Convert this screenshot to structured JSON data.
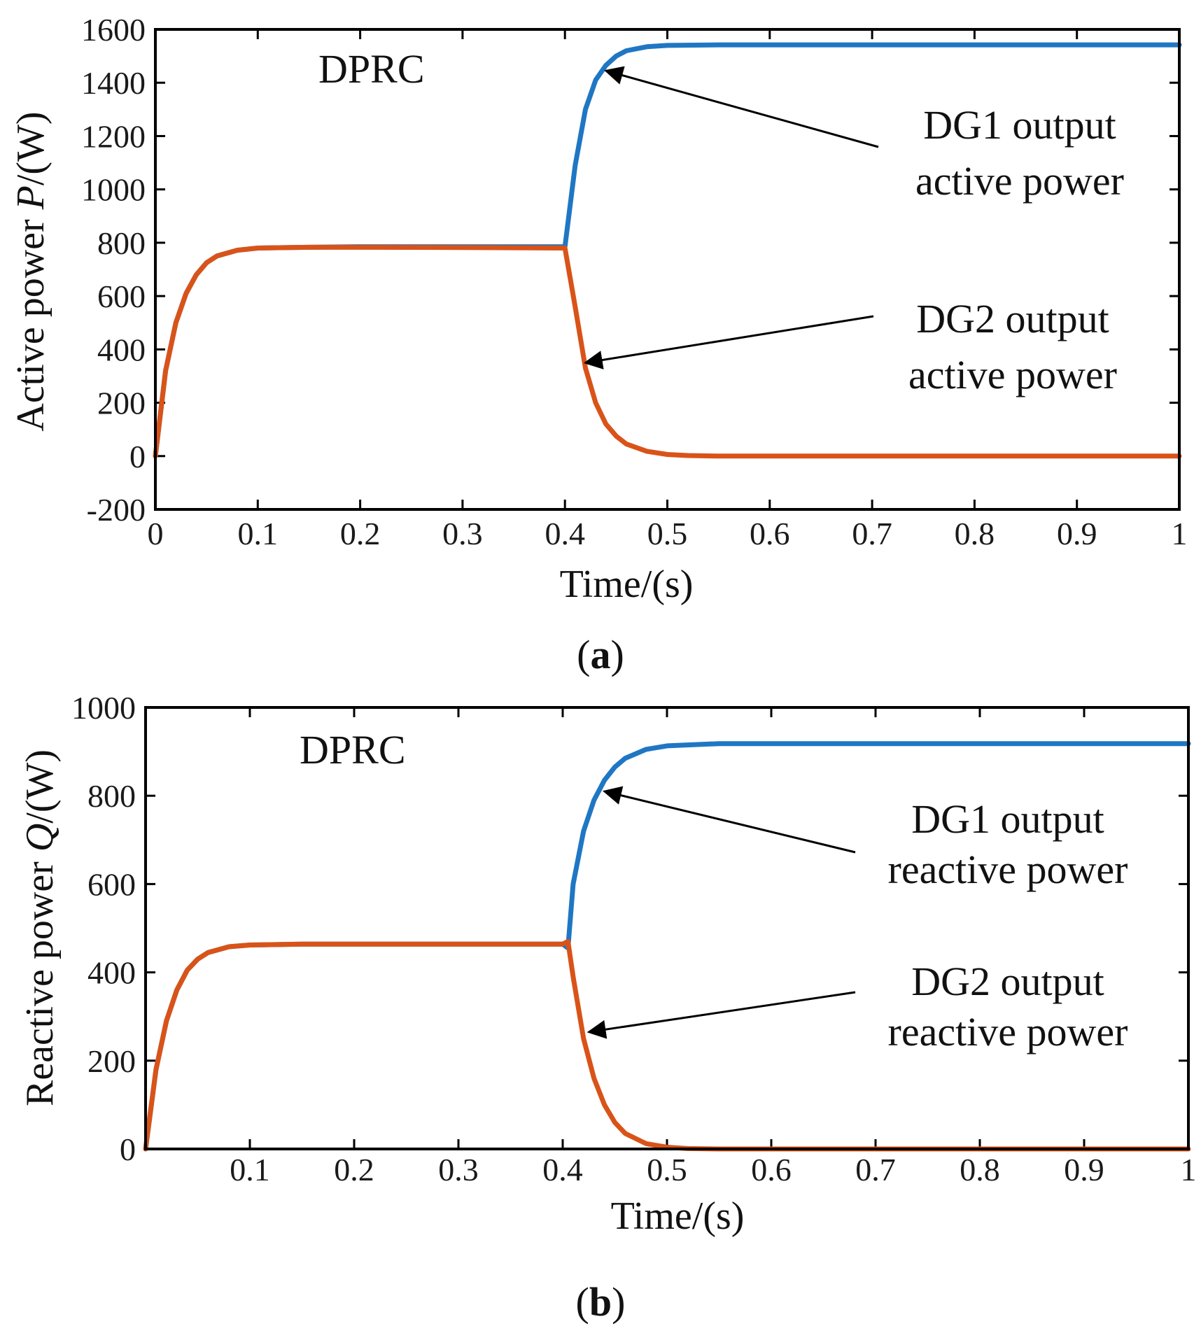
{
  "chart_data": [
    {
      "type": "line",
      "panel_label": "(a)",
      "panel_letter": "a",
      "annotation": "DPRC",
      "xlabel": "Time/(s)",
      "ylabel_prefix": "Active power ",
      "ylabel_var": "P",
      "ylabel_suffix": "/(W)",
      "xlim": [
        0,
        1
      ],
      "ylim": [
        -200,
        1600
      ],
      "xticks": [
        0,
        0.1,
        0.2,
        0.3,
        0.4,
        0.5,
        0.6,
        0.7,
        0.8,
        0.9,
        1
      ],
      "xtick_labels": [
        "0",
        "0.1",
        "0.2",
        "0.3",
        "0.4",
        "0.5",
        "0.6",
        "0.7",
        "0.8",
        "0.9",
        "1"
      ],
      "yticks": [
        -200,
        0,
        200,
        400,
        600,
        800,
        1000,
        1200,
        1400,
        1600
      ],
      "ytick_labels": [
        "-200",
        "0",
        "200",
        "400",
        "600",
        "800",
        "1000",
        "1200",
        "1400",
        "1600"
      ],
      "series": [
        {
          "name": "DG1 output active power",
          "label_lines": [
            "DG1 output",
            "active power"
          ],
          "color": "#1f77c4",
          "x": [
            0,
            0.01,
            0.02,
            0.03,
            0.04,
            0.05,
            0.06,
            0.08,
            0.1,
            0.15,
            0.2,
            0.3,
            0.4,
            0.41,
            0.42,
            0.43,
            0.44,
            0.45,
            0.46,
            0.48,
            0.5,
            0.55,
            0.6,
            0.7,
            0.8,
            0.9,
            1.0
          ],
          "y": [
            0,
            320,
            500,
            610,
            680,
            725,
            750,
            772,
            780,
            783,
            785,
            785,
            785,
            1090,
            1300,
            1410,
            1465,
            1500,
            1520,
            1535,
            1540,
            1542,
            1542,
            1542,
            1542,
            1542,
            1542
          ]
        },
        {
          "name": "DG2 output active power",
          "label_lines": [
            "DG2 output",
            "active power"
          ],
          "color": "#d95319",
          "x": [
            0,
            0.01,
            0.02,
            0.03,
            0.04,
            0.05,
            0.06,
            0.08,
            0.1,
            0.15,
            0.2,
            0.3,
            0.4,
            0.41,
            0.42,
            0.43,
            0.44,
            0.45,
            0.46,
            0.48,
            0.5,
            0.52,
            0.55,
            0.6,
            0.7,
            0.8,
            0.9,
            1.0
          ],
          "y": [
            0,
            320,
            500,
            610,
            680,
            725,
            750,
            772,
            780,
            783,
            783,
            782,
            780,
            560,
            330,
            200,
            120,
            75,
            45,
            18,
            6,
            2,
            0,
            0,
            0,
            0,
            0,
            0
          ]
        }
      ],
      "arrows": [
        {
          "label_series": 0,
          "tip": [
            0.44,
            1445
          ]
        },
        {
          "label_series": 1,
          "tip": [
            0.42,
            350
          ]
        }
      ]
    },
    {
      "type": "line",
      "panel_label": "(b)",
      "panel_letter": "b",
      "annotation": "DPRC",
      "xlabel": "Time/(s)",
      "ylabel_prefix": "Reactive power ",
      "ylabel_var": "Q",
      "ylabel_suffix": "/(W)",
      "xlim": [
        0,
        1
      ],
      "ylim": [
        0,
        1000
      ],
      "xticks": [
        0.1,
        0.2,
        0.3,
        0.4,
        0.5,
        0.6,
        0.7,
        0.8,
        0.9,
        1
      ],
      "xtick_labels": [
        "0.1",
        "0.2",
        "0.3",
        "0.4",
        "0.5",
        "0.6",
        "0.7",
        "0.8",
        "0.9",
        "1"
      ],
      "yticks": [
        0,
        200,
        400,
        600,
        800,
        1000
      ],
      "ytick_labels": [
        "0",
        "200",
        "400",
        "600",
        "800",
        "1000"
      ],
      "series": [
        {
          "name": "DG1 output reactive power",
          "label_lines": [
            "DG1 output",
            "reactive power"
          ],
          "color": "#1f77c4",
          "x": [
            0,
            0.01,
            0.02,
            0.03,
            0.04,
            0.05,
            0.06,
            0.08,
            0.1,
            0.15,
            0.2,
            0.3,
            0.4,
            0.405,
            0.41,
            0.42,
            0.43,
            0.44,
            0.45,
            0.46,
            0.48,
            0.5,
            0.55,
            0.6,
            0.7,
            0.8,
            0.9,
            1.0
          ],
          "y": [
            0,
            180,
            290,
            360,
            405,
            430,
            445,
            458,
            462,
            464,
            464,
            464,
            464,
            455,
            600,
            720,
            790,
            835,
            865,
            885,
            905,
            913,
            918,
            918,
            918,
            918,
            918,
            918
          ]
        },
        {
          "name": "DG2 output reactive power",
          "label_lines": [
            "DG2 output",
            "reactive power"
          ],
          "color": "#d95319",
          "x": [
            0,
            0.01,
            0.02,
            0.03,
            0.04,
            0.05,
            0.06,
            0.08,
            0.1,
            0.15,
            0.2,
            0.3,
            0.4,
            0.405,
            0.41,
            0.42,
            0.43,
            0.44,
            0.45,
            0.46,
            0.48,
            0.5,
            0.52,
            0.55,
            0.6,
            0.7,
            0.8,
            0.9,
            1.0
          ],
          "y": [
            0,
            180,
            290,
            360,
            405,
            430,
            445,
            458,
            462,
            464,
            464,
            464,
            464,
            470,
            390,
            250,
            160,
            100,
            60,
            35,
            12,
            4,
            1,
            0,
            0,
            0,
            0,
            0,
            0
          ]
        }
      ],
      "arrows": [
        {
          "label_series": 0,
          "tip": [
            0.44,
            810
          ]
        },
        {
          "label_series": 1,
          "tip": [
            0.425,
            265
          ]
        }
      ]
    }
  ]
}
